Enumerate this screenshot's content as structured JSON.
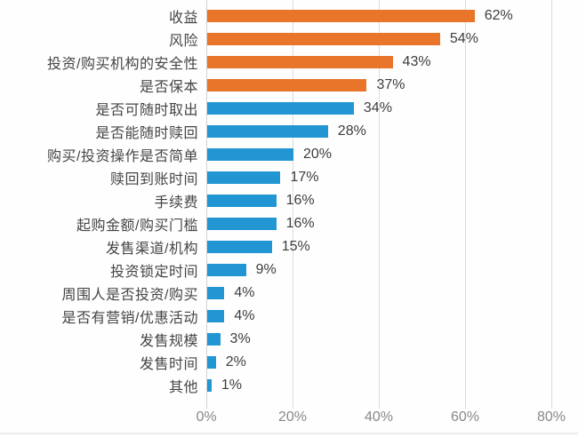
{
  "chart_data": {
    "type": "bar",
    "orientation": "horizontal",
    "title": "",
    "categories": [
      "收益",
      "风险",
      "投资/购买机构的安全性",
      "是否保本",
      "是否可随时取出",
      "是否能随时赎回",
      "购买/投资操作是否简单",
      "赎回到账时间",
      "手续费",
      "起购金额/购买门槛",
      "发售渠道/机构",
      "投资锁定时间",
      "周围人是否投资/购买",
      "是否有营销/优惠活动",
      "发售规模",
      "发售时间",
      "其他"
    ],
    "values": [
      62,
      54,
      43,
      37,
      34,
      28,
      20,
      17,
      16,
      16,
      15,
      9,
      4,
      4,
      3,
      2,
      1
    ],
    "value_labels": [
      "62%",
      "54%",
      "43%",
      "37%",
      "34%",
      "28%",
      "20%",
      "17%",
      "16%",
      "16%",
      "15%",
      "9%",
      "4%",
      "4%",
      "3%",
      "2%",
      "1%"
    ],
    "bar_groups": [
      "orange",
      "orange",
      "orange",
      "orange",
      "blue",
      "blue",
      "blue",
      "blue",
      "blue",
      "blue",
      "blue",
      "blue",
      "blue",
      "blue",
      "blue",
      "blue",
      "blue"
    ],
    "colors": {
      "orange": "#e8752a",
      "blue": "#2196d3"
    },
    "x_ticks": [
      {
        "value": 0,
        "label": "0%"
      },
      {
        "value": 20,
        "label": "20%"
      },
      {
        "value": 40,
        "label": "40%"
      },
      {
        "value": 60,
        "label": "60%"
      },
      {
        "value": 80,
        "label": "80%"
      }
    ],
    "xlim": [
      0,
      86
    ],
    "xlabel": "",
    "ylabel": "",
    "grid": true,
    "legend": "none"
  }
}
